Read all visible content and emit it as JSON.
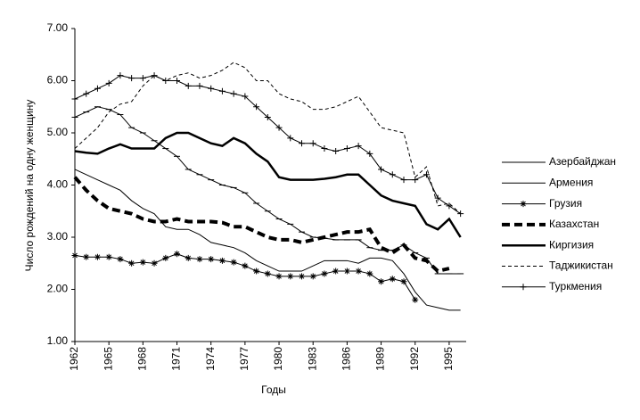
{
  "chart_data": {
    "type": "line",
    "xlabel": "Годы",
    "ylabel": "Число рождений на одну женщину",
    "x": [
      1962,
      1963,
      1964,
      1965,
      1966,
      1967,
      1968,
      1969,
      1970,
      1971,
      1972,
      1973,
      1974,
      1975,
      1976,
      1977,
      1978,
      1979,
      1980,
      1981,
      1982,
      1983,
      1984,
      1985,
      1986,
      1987,
      1988,
      1989,
      1990,
      1991,
      1992,
      1993,
      1994,
      1995,
      1996
    ],
    "xlim": [
      1962,
      1996.5
    ],
    "xticks": [
      1962,
      1965,
      1968,
      1971,
      1974,
      1977,
      1980,
      1983,
      1986,
      1989,
      1992,
      1995
    ],
    "ylim": [
      1,
      7
    ],
    "yticks": [
      {
        "value": 1,
        "label": "1.00"
      },
      {
        "value": 2,
        "label": "2.00"
      },
      {
        "value": 3,
        "label": "3.00"
      },
      {
        "value": 4,
        "label": "4.00"
      },
      {
        "value": 5,
        "label": "5.00"
      },
      {
        "value": 6,
        "label": "6.00"
      },
      {
        "value": 7,
        "label": "7.00"
      }
    ],
    "grid": false,
    "legend": "right",
    "series": [
      {
        "name": "Азербайджан",
        "color": "#000000",
        "width": 1,
        "dash": false,
        "marker": "dash",
        "values": [
          5.3,
          5.4,
          5.5,
          5.45,
          5.35,
          5.1,
          5.0,
          4.85,
          4.7,
          4.55,
          4.3,
          4.2,
          4.1,
          4.0,
          3.95,
          3.85,
          3.65,
          3.5,
          3.35,
          3.25,
          3.1,
          3.0,
          2.98,
          2.95,
          2.95,
          2.95,
          2.8,
          2.75,
          2.75,
          2.85,
          2.7,
          2.6,
          2.3,
          2.3,
          2.3
        ]
      },
      {
        "name": "Армения",
        "color": "#000000",
        "width": 1,
        "dash": false,
        "marker": "none",
        "values": [
          4.3,
          4.2,
          4.1,
          4.0,
          3.9,
          3.7,
          3.55,
          3.45,
          3.2,
          3.15,
          3.15,
          3.05,
          2.9,
          2.85,
          2.8,
          2.7,
          2.55,
          2.45,
          2.35,
          2.35,
          2.35,
          2.45,
          2.55,
          2.55,
          2.55,
          2.5,
          2.6,
          2.6,
          2.55,
          2.3,
          1.95,
          1.7,
          1.65,
          1.6,
          1.6
        ]
      },
      {
        "name": "Грузия",
        "color": "#000000",
        "width": 1,
        "dash": false,
        "marker": "star",
        "values": [
          2.65,
          2.62,
          2.62,
          2.62,
          2.58,
          2.5,
          2.52,
          2.5,
          2.6,
          2.68,
          2.6,
          2.58,
          2.58,
          2.55,
          2.52,
          2.45,
          2.35,
          2.3,
          2.25,
          2.25,
          2.25,
          2.25,
          2.3,
          2.35,
          2.35,
          2.35,
          2.3,
          2.15,
          2.2,
          2.15,
          1.8,
          null,
          null,
          null,
          null
        ]
      },
      {
        "name": "Казахстан",
        "color": "#000000",
        "width": 4,
        "dash": true,
        "marker": "none",
        "values": [
          4.15,
          3.9,
          3.7,
          3.55,
          3.5,
          3.45,
          3.35,
          3.3,
          3.3,
          3.35,
          3.3,
          3.3,
          3.3,
          3.28,
          3.2,
          3.2,
          3.1,
          3.0,
          2.95,
          2.95,
          2.9,
          2.95,
          3.0,
          3.05,
          3.1,
          3.1,
          3.15,
          2.8,
          2.7,
          2.85,
          2.6,
          2.55,
          2.35,
          2.4,
          null
        ]
      },
      {
        "name": "Киргизия",
        "color": "#000000",
        "width": 2.5,
        "dash": false,
        "marker": "none",
        "values": [
          4.65,
          4.62,
          4.6,
          4.7,
          4.78,
          4.7,
          4.7,
          4.7,
          4.9,
          5.0,
          5.0,
          4.9,
          4.8,
          4.75,
          4.9,
          4.8,
          4.6,
          4.45,
          4.15,
          4.1,
          4.1,
          4.1,
          4.12,
          4.15,
          4.2,
          4.2,
          4.0,
          3.8,
          3.7,
          3.65,
          3.6,
          3.25,
          3.15,
          3.35,
          3.0
        ]
      },
      {
        "name": "Таджикистан",
        "color": "#000000",
        "width": 1,
        "dash": true,
        "marker": "none",
        "values": [
          4.7,
          4.9,
          5.1,
          5.4,
          5.55,
          5.6,
          5.9,
          6.1,
          6.0,
          6.1,
          6.15,
          6.05,
          6.1,
          6.2,
          6.35,
          6.25,
          6.0,
          6.0,
          5.75,
          5.65,
          5.6,
          5.45,
          5.45,
          5.5,
          5.6,
          5.7,
          5.4,
          5.1,
          5.05,
          5.0,
          4.15,
          4.35,
          3.6,
          3.65,
          3.45
        ]
      },
      {
        "name": "Туркмения",
        "color": "#000000",
        "width": 1,
        "dash": false,
        "marker": "plus",
        "values": [
          5.65,
          5.75,
          5.85,
          5.95,
          6.1,
          6.05,
          6.05,
          6.1,
          6.0,
          6.0,
          5.9,
          5.9,
          5.85,
          5.8,
          5.75,
          5.7,
          5.5,
          5.3,
          5.1,
          4.9,
          4.8,
          4.8,
          4.7,
          4.65,
          4.7,
          4.75,
          4.6,
          4.3,
          4.2,
          4.1,
          4.1,
          4.2,
          3.75,
          3.6,
          3.45
        ]
      }
    ]
  }
}
